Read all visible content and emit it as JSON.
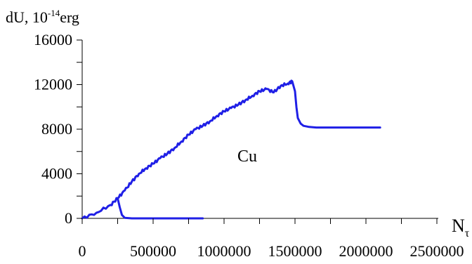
{
  "chart_data": {
    "type": "line",
    "title": "",
    "ylabel_prefix": "dU, 10",
    "ylabel_exp": "-14",
    "ylabel_suffix": "erg",
    "xlabel": "N",
    "xlabel_sub": "τ",
    "annotation": "Cu",
    "xlim": [
      0,
      2500000
    ],
    "ylim": [
      0,
      16000
    ],
    "x_ticks": [
      "0",
      "500000",
      "1000000",
      "1500000",
      "2000000",
      "2500000"
    ],
    "y_ticks": [
      "0",
      "4000",
      "8000",
      "12000",
      "16000"
    ],
    "x_tick_values": [
      0,
      500000,
      1000000,
      1500000,
      2000000,
      2500000
    ],
    "y_tick_values": [
      0,
      4000,
      8000,
      12000,
      16000
    ],
    "grid": false,
    "series": [
      {
        "color": "#1f1fe6",
        "x": [
          0,
          100000,
          200000,
          250000,
          300000,
          350000,
          400000,
          450000,
          500000,
          550000,
          600000,
          650000,
          700000,
          750000,
          800000,
          850000,
          900000,
          950000,
          1000000,
          1050000,
          1100000,
          1150000,
          1200000,
          1250000,
          1300000,
          1350000,
          1400000,
          1450000,
          1480000,
          1500000,
          1510000,
          1520000,
          1540000,
          1560000,
          1600000,
          1650000,
          1700000,
          1800000,
          1900000,
          2000000,
          2100000
        ],
        "y": [
          0,
          500,
          1200,
          1800,
          2500,
          3300,
          4000,
          4500,
          4900,
          5400,
          5800,
          6300,
          6900,
          7500,
          8000,
          8300,
          8700,
          9200,
          9600,
          9900,
          10200,
          10600,
          11000,
          11400,
          11600,
          11300,
          11900,
          12100,
          12300,
          11400,
          10000,
          9000,
          8500,
          8300,
          8200,
          8150,
          8150,
          8150,
          8150,
          8150,
          8150
        ]
      },
      {
        "color": "#1f1fe6",
        "x": [
          250000,
          265000,
          280000,
          300000,
          350000,
          400000,
          500000,
          600000,
          700000,
          800000,
          850000
        ],
        "y": [
          1800,
          1000,
          300,
          50,
          0,
          0,
          0,
          0,
          0,
          0,
          0
        ]
      }
    ]
  }
}
